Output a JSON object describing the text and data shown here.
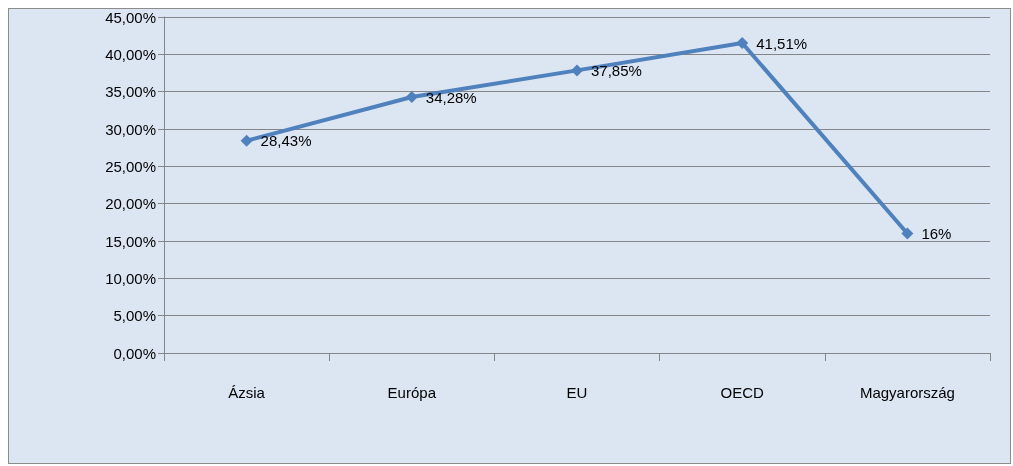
{
  "chart_data": {
    "type": "line",
    "categories": [
      "Ázsia",
      "Európa",
      "EU",
      "OECD",
      "Magyarország"
    ],
    "series": [
      {
        "color": "#4f81bd",
        "values": [
          28.43,
          34.28,
          37.85,
          41.51,
          16
        ],
        "value_labels": [
          "28,43%",
          "34,28%",
          "37,85%",
          "41,51%",
          "16%"
        ]
      }
    ],
    "ylim": [
      0,
      45
    ],
    "yticks": [
      {
        "value": 0,
        "label": "0,00%"
      },
      {
        "value": 5,
        "label": "5,00%"
      },
      {
        "value": 10,
        "label": "10,00%"
      },
      {
        "value": 15,
        "label": "15,00%"
      },
      {
        "value": 20,
        "label": "20,00%"
      },
      {
        "value": 25,
        "label": "25,00%"
      },
      {
        "value": 30,
        "label": "30,00%"
      },
      {
        "value": 35,
        "label": "35,00%"
      },
      {
        "value": 40,
        "label": "40,00%"
      },
      {
        "value": 45,
        "label": "45,00%"
      }
    ],
    "grid": "y",
    "marker": "diamond",
    "line_style": "solid"
  }
}
